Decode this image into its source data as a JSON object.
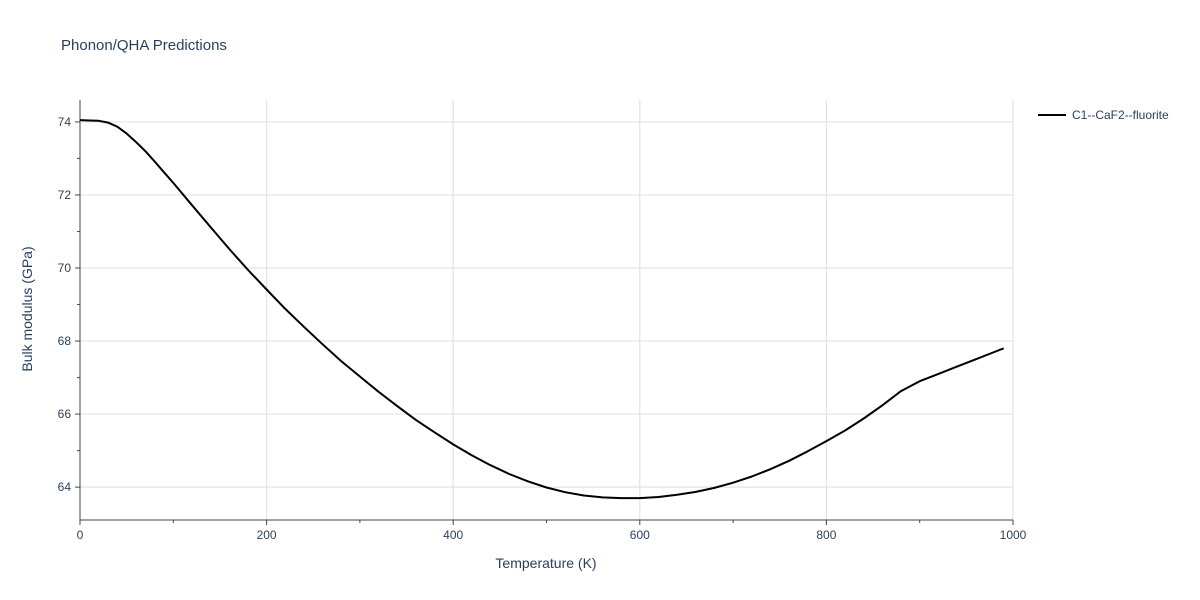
{
  "chart_data": {
    "type": "line",
    "title": "Phonon/QHA Predictions",
    "xlabel": "Temperature (K)",
    "ylabel": "Bulk modulus (GPa)",
    "xlim": [
      0,
      1000
    ],
    "ylim": [
      63.1,
      74.6
    ],
    "x_ticks": [
      0,
      200,
      400,
      600,
      800,
      1000
    ],
    "y_ticks": [
      64,
      66,
      68,
      70,
      72,
      74
    ],
    "grid": true,
    "legend_position": "top-right",
    "series": [
      {
        "name": "C1--CaF2--fluorite",
        "color": "#000000",
        "x": [
          0,
          10,
          20,
          30,
          40,
          50,
          60,
          70,
          80,
          90,
          100,
          120,
          140,
          160,
          180,
          200,
          220,
          240,
          260,
          280,
          300,
          320,
          340,
          360,
          380,
          400,
          420,
          440,
          460,
          480,
          500,
          520,
          540,
          560,
          580,
          600,
          620,
          640,
          660,
          680,
          700,
          720,
          740,
          760,
          780,
          800,
          820,
          840,
          860,
          880,
          900,
          920,
          940,
          960,
          980,
          990
        ],
        "y": [
          74.05,
          74.04,
          74.03,
          73.98,
          73.87,
          73.68,
          73.45,
          73.2,
          72.92,
          72.62,
          72.33,
          71.72,
          71.12,
          70.52,
          69.95,
          69.41,
          68.88,
          68.39,
          67.91,
          67.45,
          67.03,
          66.61,
          66.22,
          65.84,
          65.5,
          65.17,
          64.87,
          64.6,
          64.36,
          64.16,
          63.99,
          63.86,
          63.77,
          63.72,
          63.7,
          63.7,
          63.73,
          63.79,
          63.87,
          63.98,
          64.12,
          64.29,
          64.49,
          64.72,
          64.98,
          65.26,
          65.55,
          65.88,
          66.24,
          66.63,
          66.9,
          67.1,
          67.3,
          67.5,
          67.7,
          67.8
        ]
      }
    ]
  }
}
